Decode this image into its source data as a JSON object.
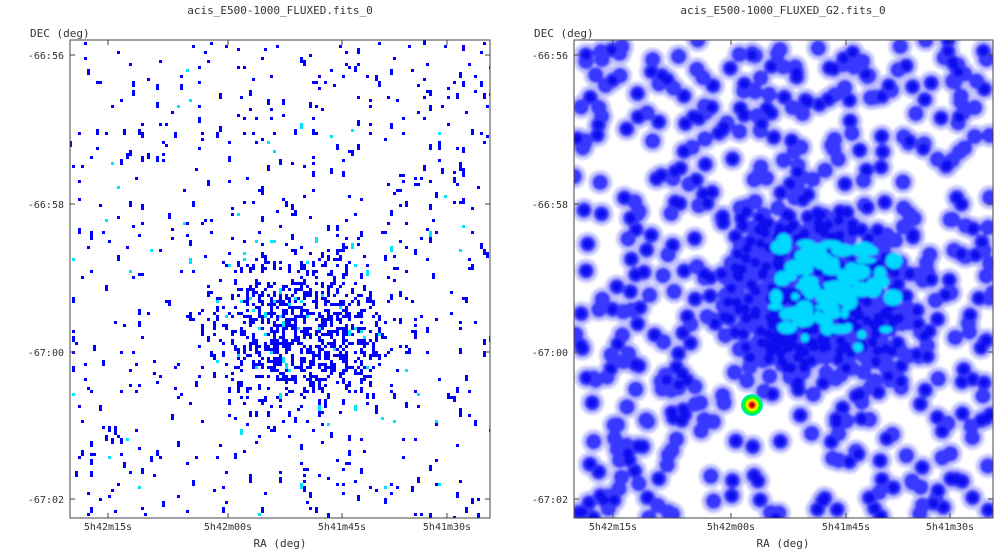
{
  "chart_data": [
    {
      "type": "heatmap",
      "title": "acis_E500-1000_FLUXED.fits_0",
      "xlabel": "RA (deg)",
      "ylabel": "DEC (deg)",
      "x_ticks": [
        "5h42m15s",
        "5h42m00s",
        "5h41m45s",
        "5h41m30s"
      ],
      "y_ticks": [
        "-66:56",
        "-66:58",
        "-67:00",
        "-67:02"
      ],
      "grid": false,
      "colormap": [
        "#0000ff",
        "#00e5ff"
      ],
      "background": "#ffffff"
    },
    {
      "type": "heatmap",
      "title": "acis_E500-1000_FLUXED_G2.fits_0",
      "xlabel": "RA (deg)",
      "ylabel": "DEC (deg)",
      "x_ticks": [
        "5h42m15s",
        "5h42m00s",
        "5h41m45s",
        "5h41m30s"
      ],
      "y_ticks": [
        "-66:56",
        "-66:58",
        "-67:00",
        "-67:02"
      ],
      "grid": false,
      "colormap": [
        "#c8c8ff",
        "#0000ff",
        "#00e5ff",
        "#00ff00",
        "#ffff00",
        "#ff0000"
      ],
      "background": "#ffffff",
      "bright_source": {
        "ra": "5h41m58s",
        "dec": "-67:00:42"
      }
    }
  ]
}
